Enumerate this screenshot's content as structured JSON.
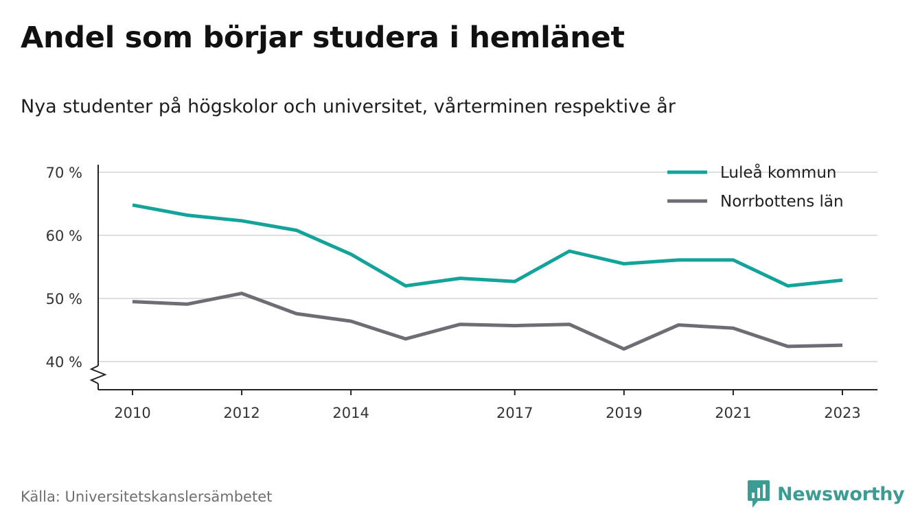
{
  "title": "Andel som börjar studera i hemlänet",
  "subtitle": "Nya studenter på högskolor och universitet, vårterminen respektive år",
  "source": "Källa: Universitetskanslersämbetet",
  "brand": {
    "name": "Newsworthy",
    "icon": "bar-chart-speech-bubble-icon",
    "color": "#3c9c93"
  },
  "chart_data": {
    "type": "line",
    "title": "",
    "xlabel": "",
    "ylabel": "",
    "x": [
      2010,
      2011,
      2012,
      2013,
      2014,
      2015,
      2016,
      2017,
      2018,
      2019,
      2020,
      2021,
      2022,
      2023
    ],
    "x_tick_labels": [
      "2010",
      "2012",
      "2014",
      "2017",
      "2019",
      "2021",
      "2023"
    ],
    "y_ticks": [
      40,
      50,
      60,
      70
    ],
    "y_tick_labels": [
      "40 %",
      "50 %",
      "60 %",
      "70 %"
    ],
    "ylim": [
      35.5,
      70
    ],
    "y_axis_break": true,
    "grid": "horizontal",
    "legend_position": "top-right",
    "series": [
      {
        "name": "Luleå kommun",
        "color": "#13a39a",
        "values": [
          64.8,
          63.2,
          62.3,
          60.8,
          57.0,
          52.0,
          53.2,
          52.7,
          57.5,
          55.5,
          56.1,
          56.1,
          52.0,
          52.9
        ]
      },
      {
        "name": "Norrbottens län",
        "color": "#6e6d74",
        "values": [
          49.5,
          49.1,
          50.8,
          47.6,
          46.4,
          43.6,
          45.9,
          45.7,
          45.9,
          42.0,
          45.8,
          45.3,
          42.4,
          42.6
        ]
      }
    ]
  }
}
